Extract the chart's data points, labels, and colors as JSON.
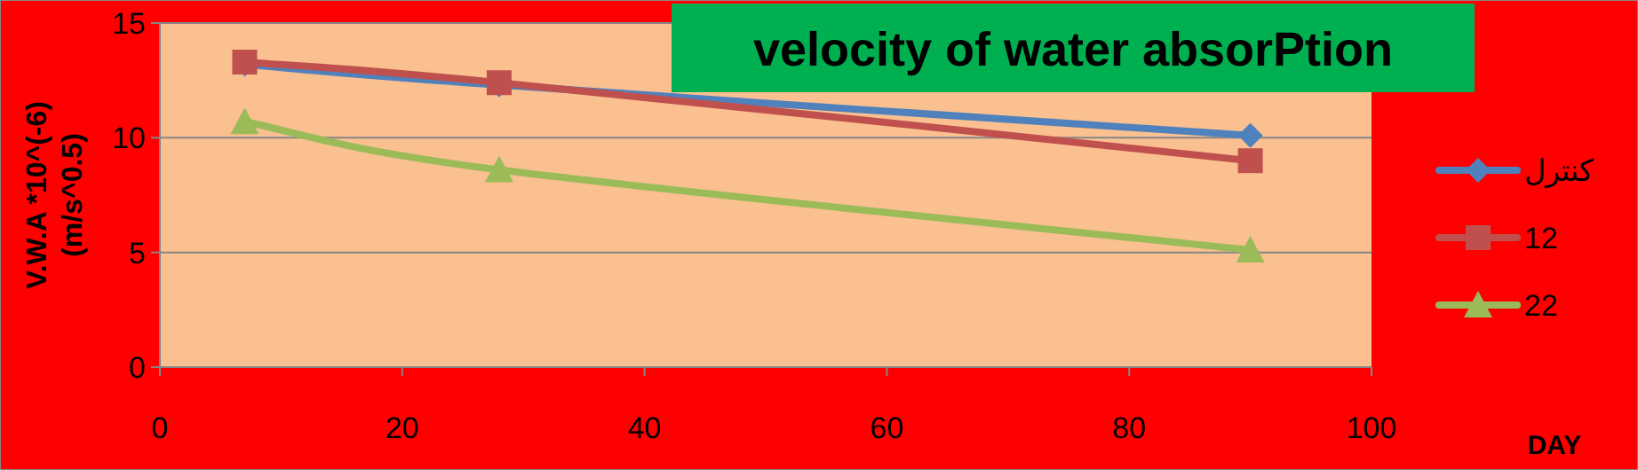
{
  "chart_data": {
    "type": "line",
    "title": "velocity of water absorPtion",
    "ylabel": "V.W.A *10^(-6)\n(m/s^0.5)",
    "xlabel": "DAY",
    "x": [
      7,
      28,
      90
    ],
    "series": [
      {
        "name": "كنترل",
        "color": "#4f81bd",
        "marker": "diamond",
        "values": [
          13.2,
          12.3,
          10.1
        ]
      },
      {
        "name": "12",
        "color": "#c0504d",
        "marker": "square",
        "values": [
          13.3,
          12.4,
          9.0
        ]
      },
      {
        "name": "22",
        "color": "#9bbb59",
        "marker": "triangle",
        "values": [
          10.7,
          8.6,
          5.1
        ]
      }
    ],
    "xlim": [
      0,
      100
    ],
    "xticks": [
      0,
      20,
      40,
      60,
      80,
      100
    ],
    "ylim": [
      0,
      15
    ],
    "yticks": [
      0,
      5,
      10,
      15
    ],
    "grid": "y",
    "legend": "right"
  }
}
